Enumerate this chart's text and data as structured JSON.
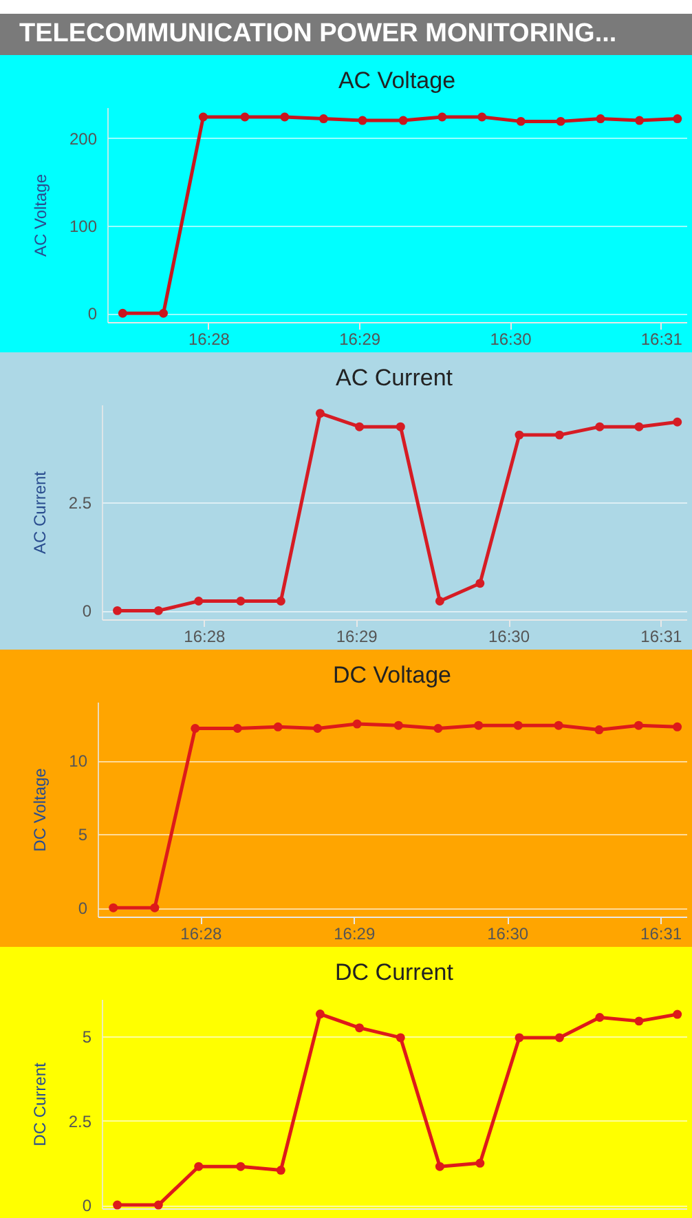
{
  "chart_data": [
    {
      "type": "other",
      "title": "TELECOMMUNICATION POWER MONITORING..."
    },
    {
      "type": "line",
      "title": "AC Voltage",
      "ylabel": "AC Voltage",
      "x": [
        16.4572,
        16.4617,
        16.4661,
        16.4707,
        16.4751,
        16.4794,
        16.4837,
        16.4882,
        16.4925,
        16.4969,
        16.5012,
        16.5056,
        16.51,
        16.5143,
        16.5185
      ],
      "series": [
        {
          "color": "#c8161e",
          "values": [
            0,
            0,
            224,
            224,
            224,
            222,
            220,
            220,
            224,
            224,
            219,
            219,
            222,
            220,
            222
          ]
        }
      ],
      "xlim": [
        16.4555,
        16.5195
      ],
      "xticks": [
        {
          "value": 16.466667,
          "label": "16:28"
        },
        {
          "value": 16.483333,
          "label": "16:29"
        },
        {
          "value": 16.5,
          "label": "16:30"
        },
        {
          "value": 16.516667,
          "label": "16:31"
        }
      ],
      "ylim": [
        -10,
        235
      ],
      "yticks": [
        0,
        100,
        200
      ],
      "grid": "y",
      "marker": "circle",
      "line_style": "solid"
    },
    {
      "type": "line",
      "title": "AC Current",
      "ylabel": "AC Current",
      "x": [
        16.4572,
        16.4617,
        16.4661,
        16.4707,
        16.4751,
        16.4794,
        16.4837,
        16.4882,
        16.4925,
        16.4969,
        16.5012,
        16.5056,
        16.51,
        16.5143,
        16.5185
      ],
      "series": [
        {
          "color": "#d61c24",
          "values": [
            0,
            0,
            0.22,
            0.22,
            0.22,
            4.55,
            4.24,
            4.24,
            0.22,
            0.63,
            4.05,
            4.05,
            4.24,
            4.24,
            4.35
          ]
        }
      ],
      "xlim": [
        16.4555,
        16.5195
      ],
      "xticks": [
        {
          "value": 16.466667,
          "label": "16:28"
        },
        {
          "value": 16.483333,
          "label": "16:29"
        },
        {
          "value": 16.5,
          "label": "16:30"
        },
        {
          "value": 16.516667,
          "label": "16:31"
        }
      ],
      "ylim": [
        -0.2,
        4.75
      ],
      "yticks": [
        0,
        2.5
      ],
      "grid": "y",
      "marker": "circle",
      "line_style": "solid"
    },
    {
      "type": "line",
      "title": "DC Voltage",
      "ylabel": "DC Voltage",
      "x": [
        16.4572,
        16.4617,
        16.4661,
        16.4707,
        16.4751,
        16.4794,
        16.4837,
        16.4882,
        16.4925,
        16.4969,
        16.5012,
        16.5056,
        16.51,
        16.5143,
        16.5185
      ],
      "series": [
        {
          "color": "#dd1a1a",
          "values": [
            0,
            0,
            12.2,
            12.2,
            12.3,
            12.2,
            12.5,
            12.4,
            12.2,
            12.4,
            12.4,
            12.4,
            12.1,
            12.4,
            12.3
          ]
        }
      ],
      "xlim": [
        16.4555,
        16.5195
      ],
      "xticks": [
        {
          "value": 16.466667,
          "label": "16:28"
        },
        {
          "value": 16.483333,
          "label": "16:29"
        },
        {
          "value": 16.5,
          "label": "16:30"
        },
        {
          "value": 16.516667,
          "label": "16:31"
        }
      ],
      "ylim": [
        -0.6,
        14
      ],
      "yticks": [
        0,
        5,
        10
      ],
      "grid": "y",
      "marker": "circle",
      "line_style": "solid"
    },
    {
      "type": "line",
      "title": "DC Current",
      "ylabel": "DC Current",
      "x": [
        16.4572,
        16.4617,
        16.4661,
        16.4707,
        16.4751,
        16.4794,
        16.4837,
        16.4882,
        16.4925,
        16.4969,
        16.5012,
        16.5056,
        16.51,
        16.5143,
        16.5185
      ],
      "series": [
        {
          "color": "#dd1a1a",
          "values": [
            0,
            0,
            1.14,
            1.14,
            1.03,
            5.66,
            5.25,
            4.96,
            1.14,
            1.24,
            4.96,
            4.96,
            5.56,
            5.45,
            5.65
          ]
        }
      ],
      "xlim": [
        16.4555,
        16.5195
      ],
      "ylim": [
        -0.1,
        6.1
      ],
      "yticks": [
        0,
        2.5,
        5
      ],
      "grid": "y",
      "marker": "circle",
      "line_style": "solid",
      "tick_labels": "y"
    }
  ]
}
